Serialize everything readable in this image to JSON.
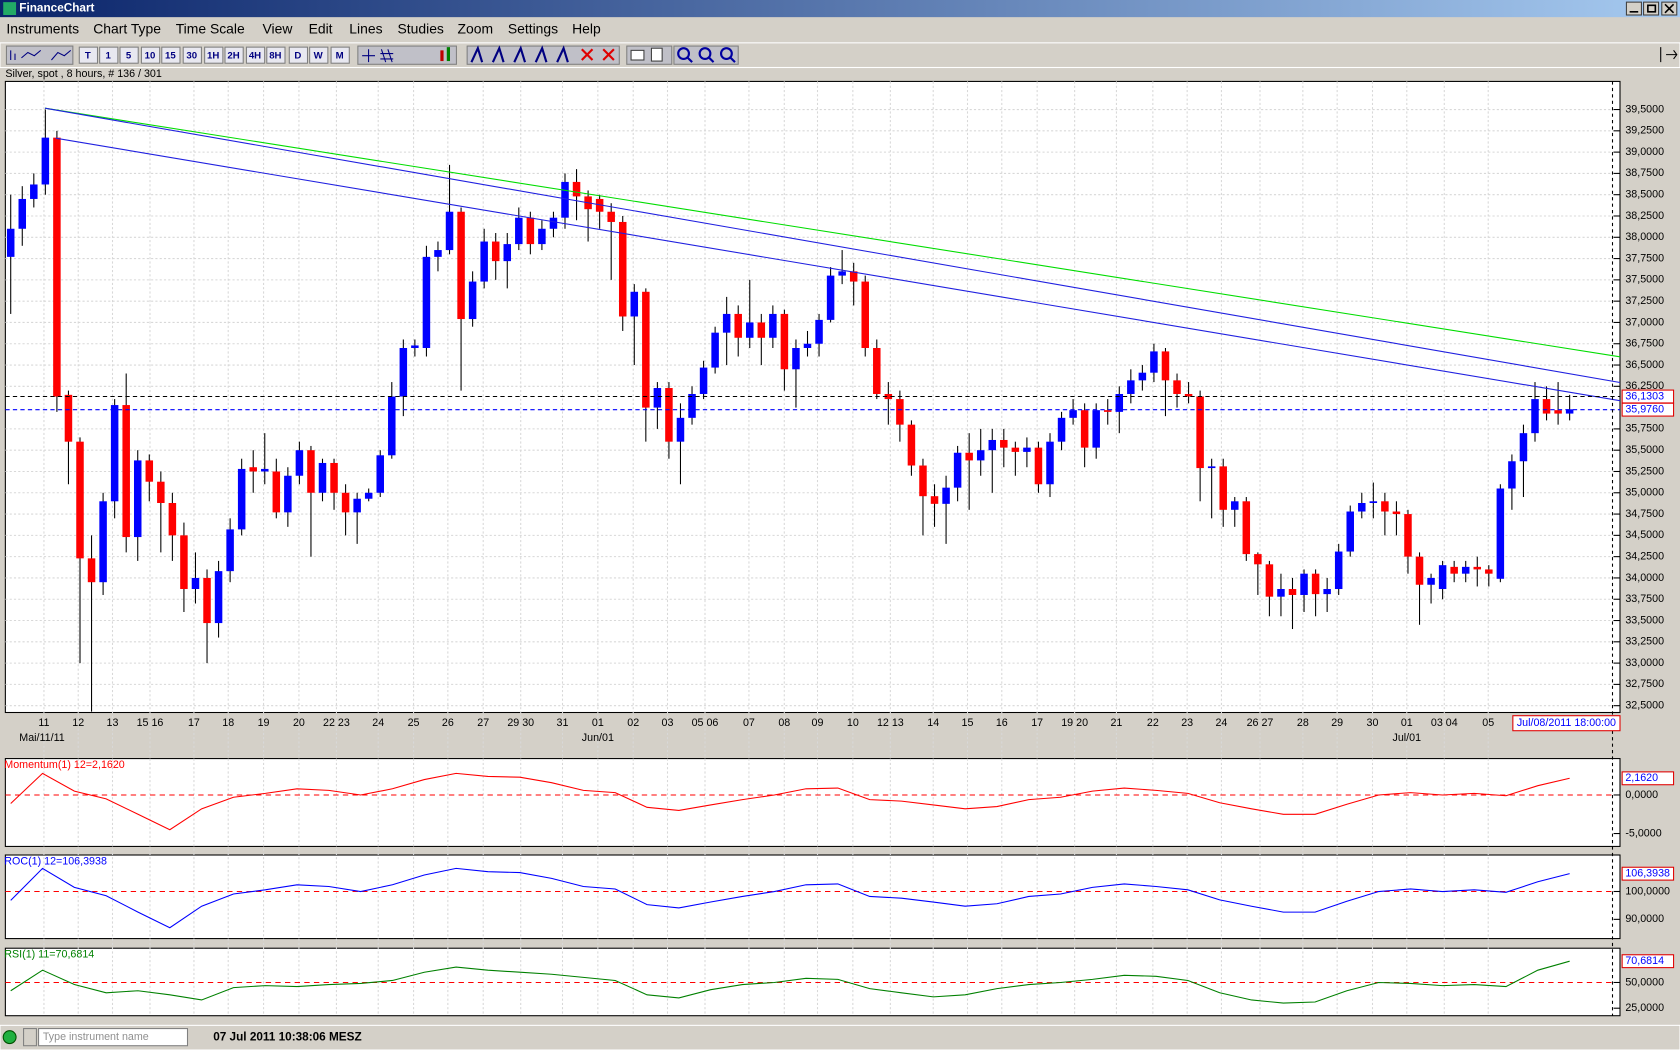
{
  "window": {
    "title": "FinanceChart"
  },
  "menu": [
    "Instruments",
    "Chart Type",
    "Time Scale",
    "View",
    "Edit",
    "Lines",
    "Studies",
    "Zoom",
    "Settings",
    "Help"
  ],
  "toolbar": [
    "T",
    "1",
    "5",
    "10",
    "15",
    "30",
    "1H",
    "2H",
    "4H",
    "8H",
    "D",
    "W",
    "M"
  ],
  "status": {
    "placeholder": "Type instrument name",
    "clock": "07 Jul 2011 10:38:06 MESZ"
  },
  "chart_data": [
    {
      "type": "candlestick",
      "title": "Silver, spot , 8 hours, # 136 / 301",
      "up_color": "#0000ff",
      "down_color": "#ff0000",
      "grid": true,
      "x_labels": [
        "11",
        "12",
        "13",
        "15 16",
        "17",
        "18",
        "19",
        "20",
        "22 23",
        "24",
        "25",
        "26",
        "27",
        "29 30",
        "31",
        "01",
        "02",
        "03",
        "05 06",
        "07",
        "08",
        "09",
        "10",
        "12 13",
        "14",
        "15",
        "16",
        "17",
        "19 20",
        "21",
        "22",
        "23",
        "24",
        "26 27",
        "28",
        "29",
        "30",
        "01",
        "03 04",
        "05"
      ],
      "month_labels": [
        "Mai/11/11",
        "Jun/01",
        "Jul/01"
      ],
      "cursor_label": "Jul/08/2011 18:00:00",
      "open": [
        37.77,
        38.1,
        38.45,
        38.62,
        39.17,
        36.15,
        35.6,
        34.23,
        33.95,
        34.9,
        36.03,
        34.48,
        35.38,
        35.13,
        34.88,
        34.5,
        33.87,
        34.0,
        33.47,
        34.08,
        34.57,
        35.3,
        35.25,
        35.25,
        34.77,
        35.2,
        35.5,
        35.0,
        35.35,
        35.0,
        34.77,
        34.93,
        35.0,
        35.44,
        36.13,
        36.7,
        36.7,
        37.77,
        37.85,
        38.3,
        37.04,
        37.48,
        37.95,
        37.72,
        37.92,
        38.23,
        37.92,
        38.1,
        38.23,
        38.65,
        38.48,
        38.45,
        38.3,
        38.18,
        37.07,
        37.36,
        36.0,
        36.23,
        35.6,
        35.88,
        36.16,
        36.47,
        36.88,
        37.1,
        36.82,
        37.0,
        36.82,
        37.1,
        36.45,
        36.7,
        36.75,
        37.03,
        37.55,
        37.6,
        37.48,
        36.7,
        36.16,
        36.1,
        35.8,
        35.32,
        34.96,
        34.87,
        35.06,
        35.47,
        35.38,
        35.5,
        35.62,
        35.53,
        35.48,
        35.53,
        35.1,
        35.6,
        35.88,
        35.97,
        35.53,
        35.97,
        35.95,
        36.16,
        36.32,
        36.41,
        36.66,
        36.32,
        36.16,
        36.13,
        35.29,
        35.31,
        34.8,
        34.9,
        34.28,
        34.16,
        33.78,
        33.87,
        33.8,
        34.05,
        33.81,
        33.87,
        34.31,
        34.78,
        34.88,
        34.9,
        34.78,
        34.75,
        34.25,
        33.92,
        33.87,
        34.13,
        34.05,
        34.13,
        34.1,
        33.99,
        35.05,
        35.37,
        35.7,
        36.1,
        35.97,
        35.93
      ],
      "high": [
        38.5,
        38.6,
        38.75,
        39.5,
        39.25,
        36.2,
        35.65,
        34.5,
        35.0,
        36.1,
        36.4,
        35.5,
        35.45,
        35.25,
        35.0,
        34.65,
        34.3,
        34.1,
        34.2,
        34.7,
        35.4,
        35.5,
        35.7,
        35.4,
        35.3,
        35.6,
        35.55,
        35.4,
        35.4,
        35.1,
        35.0,
        35.05,
        35.5,
        36.3,
        36.8,
        36.8,
        37.9,
        37.95,
        38.85,
        38.35,
        37.6,
        38.1,
        38.05,
        38.05,
        38.35,
        38.3,
        38.2,
        38.3,
        38.75,
        38.8,
        38.55,
        38.5,
        38.4,
        38.25,
        37.45,
        37.4,
        36.3,
        36.3,
        36.05,
        36.25,
        36.55,
        36.95,
        37.3,
        37.2,
        37.5,
        37.1,
        37.2,
        37.15,
        36.8,
        36.9,
        37.1,
        37.65,
        37.85,
        37.7,
        37.55,
        36.8,
        36.3,
        36.2,
        35.85,
        35.4,
        35.1,
        35.2,
        35.55,
        35.7,
        35.75,
        35.75,
        35.75,
        35.6,
        35.65,
        35.6,
        35.7,
        35.95,
        36.1,
        36.05,
        36.05,
        36.1,
        36.25,
        36.45,
        36.5,
        36.75,
        36.7,
        36.4,
        36.3,
        36.2,
        35.4,
        35.4,
        34.95,
        34.95,
        34.3,
        34.2,
        34.05,
        34.0,
        34.1,
        34.1,
        34.0,
        34.4,
        34.85,
        35.0,
        35.12,
        35.0,
        34.9,
        34.8,
        34.3,
        34.05,
        34.2,
        34.2,
        34.2,
        34.25,
        34.15,
        35.1,
        35.45,
        35.8,
        36.3,
        36.25,
        36.3,
        36.15
      ],
      "low": [
        37.1,
        37.9,
        38.35,
        38.5,
        35.95,
        35.1,
        33.0,
        32.43,
        33.8,
        34.7,
        34.3,
        34.2,
        34.9,
        34.3,
        34.2,
        33.6,
        33.7,
        33.0,
        33.3,
        33.95,
        34.5,
        35.0,
        35.1,
        34.7,
        34.6,
        35.1,
        34.25,
        34.9,
        34.8,
        34.5,
        34.4,
        34.9,
        34.95,
        35.4,
        35.9,
        36.6,
        36.6,
        37.6,
        37.8,
        36.2,
        36.95,
        37.4,
        37.5,
        37.4,
        37.85,
        37.8,
        37.85,
        38.0,
        38.1,
        38.2,
        37.95,
        38.1,
        37.5,
        36.9,
        36.5,
        35.6,
        35.75,
        35.4,
        35.1,
        35.8,
        36.1,
        36.4,
        36.5,
        36.6,
        36.7,
        36.5,
        36.7,
        36.2,
        36.0,
        36.6,
        36.6,
        37.0,
        37.45,
        37.2,
        36.6,
        36.1,
        35.8,
        35.6,
        35.2,
        34.5,
        34.6,
        34.4,
        34.9,
        34.8,
        35.2,
        35.0,
        35.3,
        35.2,
        35.3,
        35.0,
        34.95,
        35.5,
        35.8,
        35.3,
        35.4,
        35.8,
        35.7,
        36.05,
        36.2,
        36.3,
        35.9,
        36.0,
        36.05,
        34.9,
        34.7,
        34.6,
        34.6,
        34.2,
        33.8,
        33.55,
        33.55,
        33.4,
        33.6,
        33.55,
        33.6,
        33.8,
        34.25,
        34.7,
        34.7,
        34.5,
        34.5,
        34.05,
        33.45,
        33.7,
        33.75,
        33.95,
        33.95,
        33.9,
        33.9,
        33.95,
        34.8,
        34.95,
        35.6,
        35.85,
        35.8,
        35.85
      ],
      "close": [
        38.1,
        38.45,
        38.62,
        39.17,
        36.13,
        35.6,
        34.23,
        33.95,
        34.9,
        36.03,
        34.48,
        35.38,
        35.13,
        34.88,
        34.5,
        33.87,
        34.0,
        33.47,
        34.08,
        34.57,
        35.28,
        35.25,
        35.28,
        34.77,
        35.2,
        35.5,
        35.0,
        35.35,
        35.0,
        34.77,
        34.93,
        35.0,
        35.44,
        36.13,
        36.7,
        36.73,
        37.77,
        37.85,
        38.3,
        37.04,
        37.48,
        37.95,
        37.72,
        37.92,
        38.23,
        37.92,
        38.1,
        38.23,
        38.65,
        38.48,
        38.33,
        38.3,
        38.18,
        37.07,
        37.36,
        36.0,
        36.23,
        35.6,
        35.88,
        36.16,
        36.47,
        36.88,
        37.1,
        36.82,
        37.0,
        36.82,
        37.1,
        36.45,
        36.7,
        36.75,
        37.03,
        37.55,
        37.6,
        37.48,
        36.7,
        36.16,
        36.1,
        35.8,
        35.32,
        34.96,
        34.87,
        35.06,
        35.47,
        35.38,
        35.5,
        35.62,
        35.53,
        35.48,
        35.53,
        35.1,
        35.6,
        35.88,
        35.97,
        35.53,
        35.97,
        35.95,
        36.16,
        36.32,
        36.41,
        36.66,
        36.32,
        36.16,
        36.13,
        35.29,
        35.31,
        34.8,
        34.9,
        34.28,
        34.16,
        33.78,
        33.87,
        33.8,
        34.05,
        33.81,
        33.87,
        34.31,
        34.78,
        34.88,
        34.9,
        34.78,
        34.75,
        34.25,
        33.92,
        34.0,
        34.15,
        34.05,
        34.13,
        34.1,
        34.05,
        35.05,
        35.37,
        35.7,
        36.1,
        35.93,
        35.93,
        35.98
      ],
      "ylim": [
        32.42,
        39.83
      ],
      "yticks": [
        {
          "value": 32.5,
          "label": "32,5000"
        },
        {
          "value": 32.75,
          "label": "32,7500"
        },
        {
          "value": 33,
          "label": "33,0000"
        },
        {
          "value": 33.25,
          "label": "33,2500"
        },
        {
          "value": 33.5,
          "label": "33,5000"
        },
        {
          "value": 33.75,
          "label": "33,7500"
        },
        {
          "value": 34,
          "label": "34,0000"
        },
        {
          "value": 34.25,
          "label": "34,2500"
        },
        {
          "value": 34.5,
          "label": "34,5000"
        },
        {
          "value": 34.75,
          "label": "34,7500"
        },
        {
          "value": 35,
          "label": "35,0000"
        },
        {
          "value": 35.25,
          "label": "35,2500"
        },
        {
          "value": 35.5,
          "label": "35,5000"
        },
        {
          "value": 35.75,
          "label": "35,7500"
        },
        {
          "value": 36.25,
          "label": "36,2500"
        },
        {
          "value": 36.5,
          "label": "36,5000"
        },
        {
          "value": 36.75,
          "label": "36,7500"
        },
        {
          "value": 37,
          "label": "37,0000"
        },
        {
          "value": 37.25,
          "label": "37,2500"
        },
        {
          "value": 37.5,
          "label": "37,5000"
        },
        {
          "value": 37.75,
          "label": "37,7500"
        },
        {
          "value": 38,
          "label": "38,0000"
        },
        {
          "value": 38.25,
          "label": "38,2500"
        },
        {
          "value": 38.5,
          "label": "38,5000"
        },
        {
          "value": 38.75,
          "label": "38,7500"
        },
        {
          "value": 39,
          "label": "39,0000"
        },
        {
          "value": 39.25,
          "label": "39,2500"
        },
        {
          "value": 39.5,
          "label": "39,5000"
        }
      ],
      "levels": [
        {
          "value": 36.1303,
          "label": "36,1303",
          "color": "#000000"
        },
        {
          "value": 35.976,
          "label": "35,9760",
          "color": "#0000ff"
        }
      ]
    },
    {
      "type": "line",
      "title": "Momentum(1) 12=2,1620",
      "color": "#ff0000",
      "last_label": "2,1620",
      "values": [
        -1.1,
        2.8,
        0.5,
        -0.5,
        -2.5,
        -4.5,
        -1.8,
        -0.3,
        0.2,
        0.8,
        0.6,
        0,
        0.8,
        2.0,
        2.8,
        2.4,
        2.3,
        1.6,
        0.6,
        0.3,
        -1.6,
        -2.0,
        -1.3,
        -0.6,
        0,
        0.8,
        0.9,
        -0.6,
        -0.8,
        -1.3,
        -1.8,
        -1.5,
        -0.6,
        -0.3,
        0.5,
        0.9,
        0.6,
        0.2,
        -1.0,
        -1.8,
        -2.5,
        -2.5,
        -1.2,
        0,
        0.3,
        0,
        0.2,
        -0.1,
        1.2,
        2.162
      ],
      "ylim": [
        -6.67,
        4.72
      ],
      "yticks": [
        {
          "value": 0,
          "label": "0,0000"
        },
        {
          "value": -5,
          "label": "-5,0000"
        }
      ]
    },
    {
      "type": "line",
      "title": "ROC(1) 12=106,3938",
      "color": "#0000ff",
      "last_label": "106,3938",
      "values": [
        96.8,
        108.3,
        101.5,
        98.5,
        92.6,
        87.0,
        94.7,
        99.1,
        100.6,
        102.4,
        101.8,
        100.0,
        102.4,
        105.9,
        108.3,
        107.1,
        106.8,
        104.7,
        101.8,
        100.9,
        95.3,
        94.1,
        96.2,
        98.2,
        100.0,
        102.4,
        102.7,
        98.2,
        97.6,
        96.2,
        94.7,
        95.6,
        98.2,
        99.1,
        101.5,
        102.7,
        101.8,
        100.6,
        97.0,
        94.7,
        92.6,
        92.6,
        96.5,
        100.0,
        100.9,
        100.0,
        100.6,
        99.7,
        103.5,
        106.3938
      ],
      "ylim": [
        83.1,
        113.1
      ],
      "yticks": [
        {
          "value": 100,
          "label": "100,0000"
        },
        {
          "value": 90,
          "label": "90,0000"
        }
      ]
    },
    {
      "type": "line",
      "title": "RSI(1) 11=70,6814",
      "color": "#008000",
      "last_label": "70,6814",
      "values": [
        42,
        62,
        48,
        40,
        42,
        38,
        33,
        45,
        47,
        46,
        48,
        49,
        52,
        60,
        65,
        62,
        60,
        58,
        55,
        52,
        38,
        35,
        43,
        48,
        50,
        54,
        53,
        44,
        40,
        36,
        38,
        44,
        48,
        50,
        53,
        57,
        56,
        52,
        40,
        33,
        30,
        31,
        42,
        50,
        49,
        47,
        48,
        46,
        62,
        70.6814
      ],
      "ylim": [
        17.7,
        83.3
      ],
      "yticks": [
        {
          "value": 50,
          "label": "50,0000"
        },
        {
          "value": 25,
          "label": "25,0000"
        }
      ]
    }
  ]
}
